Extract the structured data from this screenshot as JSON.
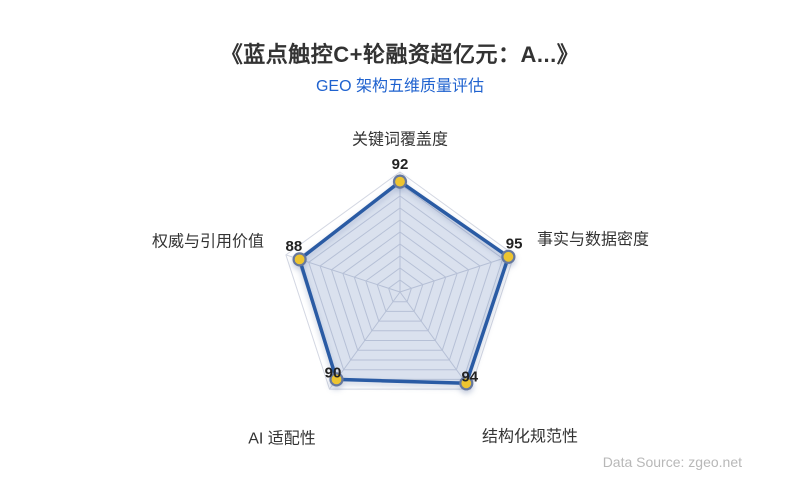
{
  "header": {
    "title": "《蓝点触控C+轮融资超亿元：A...》",
    "subtitle": "GEO 架构五维质量评估"
  },
  "footer": {
    "data_source": "Data Source: zgeo.net"
  },
  "chart_data": {
    "type": "radar",
    "title": "GEO 架构五维质量评估",
    "categories": [
      "关键词覆盖度",
      "事实与数据密度",
      "结构化规范性",
      "AI 适配性",
      "权威与引用价值"
    ],
    "values": [
      92,
      95,
      94,
      90,
      88
    ],
    "value_min": 0,
    "value_max": 100,
    "ring_count": 10,
    "grid": true,
    "legend": false,
    "colors": {
      "title": "#333333",
      "subtitle": "#1f62cf",
      "line": "#2a5ba4",
      "area_fill": "rgba(62, 98, 176, 0.15)",
      "marker_fill": "#edc430",
      "marker_border": "#66789e",
      "gridline": "#d3d7e2",
      "value_label": "#222222",
      "axis_name": "#333333",
      "source_text": "#b8b8b8"
    }
  }
}
